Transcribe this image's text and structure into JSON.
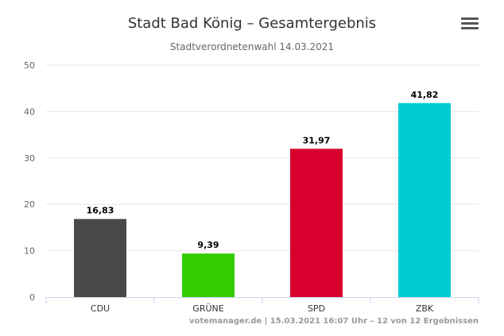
{
  "chart_data": {
    "type": "bar",
    "title": "Stadt Bad König – Gesamtergebnis",
    "subtitle": "Stadtverordnetenwahl 14.03.2021",
    "categories": [
      "CDU",
      "GRÜNE",
      "SPD",
      "ZBK"
    ],
    "values": [
      16.83,
      9.39,
      31.97,
      41.82
    ],
    "data_labels": [
      "16,83",
      "9,39",
      "31,97",
      "41,82"
    ],
    "colors": [
      "#4a4a4a",
      "#33cc00",
      "#d8002c",
      "#00cdd2"
    ],
    "ylim": [
      0,
      50
    ],
    "yticks": [
      0,
      10,
      20,
      30,
      40,
      50
    ],
    "grid": true,
    "legend": "none",
    "credits": "votemanager.de | 15.03.2021 16:07 Uhr – 12 von 12 Ergebnissen"
  },
  "menu": {
    "icon": "hamburger-menu-icon"
  }
}
